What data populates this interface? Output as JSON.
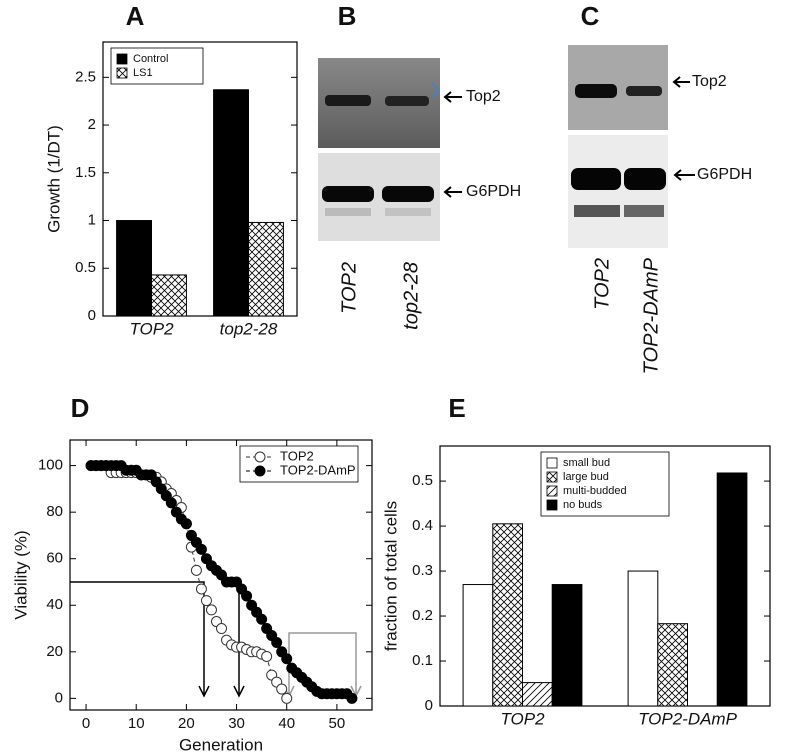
{
  "chart_data": [
    {
      "type": "bar",
      "panel": "A",
      "ylabel": "Growth (1/DT)",
      "categories": [
        "TOP2",
        "top2-28"
      ],
      "series": [
        {
          "name": "Control",
          "color": "#000000",
          "values": [
            1.0,
            2.37
          ]
        },
        {
          "name": "LS1",
          "color": "#000000",
          "hatch": "cross",
          "values": [
            0.43,
            0.98
          ]
        }
      ],
      "ylim": [
        0,
        2.87
      ],
      "yticks": [
        0,
        0.5,
        1,
        1.5,
        2,
        2.5
      ],
      "legend": "upper left"
    },
    {
      "type": "line",
      "panel": "D",
      "xlabel": "Generation",
      "ylabel": "Viability (%)",
      "series": [
        {
          "name": "TOP2",
          "color": "#333333",
          "marker_fill": "#ffffff",
          "x": [
            1,
            2,
            3,
            4,
            5,
            6,
            7,
            8,
            9,
            10,
            11,
            12,
            13,
            14,
            15,
            16,
            17,
            18,
            19,
            20,
            21,
            22,
            23,
            24,
            25,
            26,
            27,
            28,
            29,
            30,
            31,
            32,
            33,
            34,
            35,
            36,
            37,
            38,
            39,
            40
          ],
          "values": [
            100,
            100,
            100,
            100,
            97,
            97,
            97,
            97,
            97,
            97,
            96,
            96,
            95,
            95,
            93,
            90,
            88,
            85,
            82,
            75,
            65,
            55,
            47,
            42,
            38,
            33,
            30,
            25,
            23,
            22,
            22,
            21,
            20,
            20,
            19,
            18,
            10,
            7,
            4,
            0
          ]
        },
        {
          "name": "TOP2-DAmP",
          "color": "#000000",
          "marker_fill": "#000000",
          "x": [
            1,
            2,
            3,
            4,
            5,
            6,
            7,
            8,
            9,
            10,
            11,
            12,
            13,
            14,
            15,
            16,
            17,
            18,
            19,
            20,
            21,
            22,
            23,
            24,
            25,
            26,
            27,
            28,
            29,
            30,
            31,
            32,
            33,
            34,
            35,
            36,
            37,
            38,
            39,
            40,
            41,
            42,
            43,
            44,
            45,
            46,
            47,
            48,
            49,
            50,
            51,
            52,
            53
          ],
          "values": [
            100,
            100,
            100,
            100,
            100,
            100,
            100,
            98,
            98,
            98,
            96,
            96,
            96,
            93,
            90,
            87,
            84,
            80,
            77,
            75,
            70,
            67,
            64,
            60,
            57,
            55,
            53,
            50,
            50,
            50,
            47,
            44,
            40,
            37,
            34,
            30,
            27,
            24,
            20,
            17,
            13,
            11,
            9,
            7,
            5,
            3,
            2,
            2,
            2,
            2,
            2,
            2,
            0
          ]
        }
      ],
      "xlim": [
        -3.2,
        57
      ],
      "xticks": [
        0,
        10,
        20,
        30,
        40,
        50
      ],
      "ylim": [
        -5,
        111
      ],
      "yticks": [
        0,
        20,
        40,
        60,
        80,
        100
      ],
      "legend": "upper right"
    },
    {
      "type": "bar",
      "panel": "E",
      "ylabel": "fraction of total cells",
      "categories": [
        "TOP2",
        "TOP2-DAmP"
      ],
      "series": [
        {
          "name": "small bud",
          "color": "#ffffff",
          "values": [
            0.27,
            0.3
          ]
        },
        {
          "name": "large bud",
          "color": "#000000",
          "hatch": "cross",
          "values": [
            0.405,
            0.183
          ]
        },
        {
          "name": "multi-budded",
          "color": "#000000",
          "hatch": "diag",
          "values": [
            0.052,
            0
          ]
        },
        {
          "name": "no buds",
          "color": "#000000",
          "values": [
            0.27,
            0.518
          ]
        }
      ],
      "ylim": [
        0,
        0.578
      ],
      "yticks": [
        0,
        0.1,
        0.2,
        0.3,
        0.4,
        0.5
      ],
      "legend": "upper center"
    }
  ],
  "blots": [
    {
      "panel": "B",
      "bands": [
        "Top2",
        "G6PDH"
      ],
      "lanes": [
        "TOP2",
        "top2-28"
      ]
    },
    {
      "panel": "C",
      "bands": [
        "Top2",
        "G6PDH"
      ],
      "lanes": [
        "TOP2",
        "TOP2-DAmP"
      ]
    }
  ]
}
